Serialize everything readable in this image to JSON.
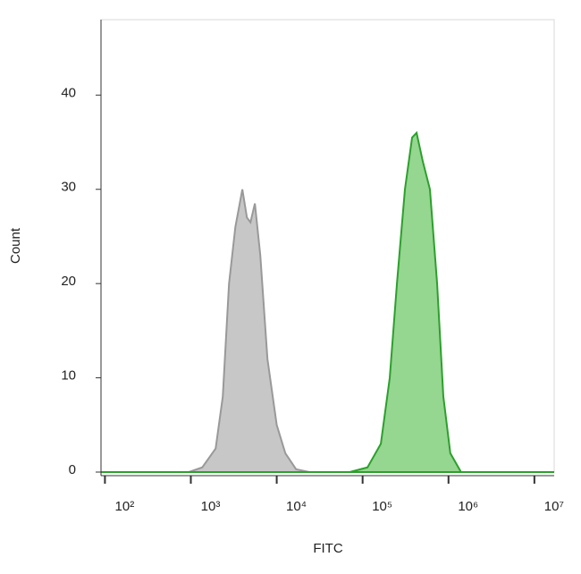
{
  "chart_data": {
    "type": "area",
    "x_label": "FITC",
    "y_label": "Count",
    "xscale": "log",
    "xlim": [
      90,
      17000000
    ],
    "ylim": [
      0,
      48
    ],
    "xticks": [
      {
        "value": 100,
        "label": "10²"
      },
      {
        "value": 1000,
        "label": "10³"
      },
      {
        "value": 10000,
        "label": "10⁴"
      },
      {
        "value": 100000,
        "label": "10⁵"
      },
      {
        "value": 1000000,
        "label": "10⁶"
      },
      {
        "value": 10000000,
        "label": "10⁷"
      }
    ],
    "yticks": [
      0,
      10,
      20,
      30,
      40
    ],
    "series": [
      {
        "color": "#999999",
        "fill": "#c4c4c4",
        "x": [
          948,
          1360,
          1945,
          2355,
          2785,
          3300,
          3980,
          4500,
          4950,
          5570,
          6440,
          7800,
          10000,
          12600,
          16800,
          24000
        ],
        "values": [
          0,
          0.5,
          2.5,
          8,
          20,
          26,
          30,
          27,
          26.5,
          28.5,
          23,
          12,
          5,
          2,
          0.3,
          0
        ]
      },
      {
        "color": "#2ca02c",
        "fill": "#8fd48a",
        "x": [
          70800,
          114000,
          163000,
          207000,
          251000,
          311000,
          377000,
          425000,
          501000,
          608000,
          737000,
          871000,
          1050000,
          1400000
        ],
        "values": [
          0,
          0.5,
          3,
          10,
          20,
          30,
          35.5,
          36,
          33,
          30,
          20,
          8,
          2,
          0
        ]
      }
    ]
  }
}
